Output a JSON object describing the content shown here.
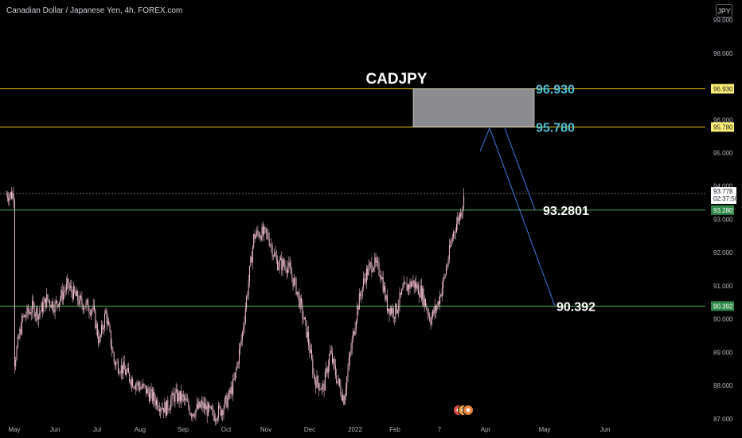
{
  "symbol_info": "Canadian Dollar / Japanese Yen, 4h, FOREX.com",
  "currency_button": "JPY",
  "colors": {
    "background": "#000000",
    "candle": "#f2bdd0",
    "resistance_line": "#f0c419",
    "support_line": "#4caf50",
    "zone_fill": "#8c8c90",
    "projection_arrow": "#3d6fd6",
    "level_text_cyan": "#4fc3d9",
    "last_price_badge": "#ffffff",
    "yellow_badge": "#fff176",
    "green_badge": "#2e8b47"
  },
  "chart_data": {
    "type": "candlestick",
    "title": "CADJPY",
    "ylim": [
      86.95,
      99.6
    ],
    "y_ticks": [
      "99.000",
      "98.000",
      "97.000",
      "96.000",
      "95.000",
      "94.000",
      "93.000",
      "92.000",
      "91.000",
      "90.000",
      "89.000",
      "88.000",
      "87.000"
    ],
    "y_tick_values": [
      99,
      98,
      97,
      96,
      95,
      94,
      93,
      92,
      91,
      90,
      89,
      88,
      87
    ],
    "x_ticks": [
      "May",
      "Jun",
      "Jul",
      "Aug",
      "Sep",
      "Oct",
      "Nov",
      "Dec",
      "2022",
      "Feb",
      "7",
      "Apr",
      "May",
      "Jun"
    ],
    "price_path": [
      [
        0,
        88.7
      ],
      [
        0.2,
        90.0
      ],
      [
        0.45,
        90.35
      ],
      [
        0.6,
        90.15
      ],
      [
        0.8,
        90.6
      ],
      [
        1.0,
        90.4
      ],
      [
        1.3,
        91.0
      ],
      [
        1.6,
        90.5
      ],
      [
        1.9,
        90.3
      ],
      [
        2.05,
        89.3
      ],
      [
        2.2,
        90.2
      ],
      [
        2.4,
        88.7
      ],
      [
        2.6,
        88.5
      ],
      [
        2.85,
        88.1
      ],
      [
        3.1,
        87.9
      ],
      [
        3.4,
        87.5
      ],
      [
        3.6,
        87.3
      ],
      [
        3.8,
        87.7
      ],
      [
        4.0,
        87.6
      ],
      [
        4.2,
        87.2
      ],
      [
        4.45,
        87.4
      ],
      [
        4.7,
        87.1
      ],
      [
        4.9,
        87.3
      ],
      [
        5.05,
        87.6
      ],
      [
        5.2,
        88.1
      ],
      [
        5.4,
        89.5
      ],
      [
        5.55,
        91.0
      ],
      [
        5.7,
        92.5
      ],
      [
        5.85,
        92.6
      ],
      [
        6.05,
        92.5
      ],
      [
        6.25,
        91.7
      ],
      [
        6.5,
        91.6
      ],
      [
        6.7,
        90.9
      ],
      [
        6.95,
        89.5
      ],
      [
        7.1,
        88.2
      ],
      [
        7.3,
        87.9
      ],
      [
        7.45,
        89.0
      ],
      [
        7.6,
        88.2
      ],
      [
        7.75,
        87.6
      ],
      [
        7.9,
        89.0
      ],
      [
        8.05,
        90.3
      ],
      [
        8.25,
        91.3
      ],
      [
        8.45,
        91.7
      ],
      [
        8.65,
        91.4
      ],
      [
        8.8,
        90.4
      ],
      [
        9.0,
        90.2
      ],
      [
        9.2,
        90.9
      ],
      [
        9.4,
        91.1
      ],
      [
        9.6,
        90.8
      ],
      [
        9.8,
        90.0
      ],
      [
        9.95,
        90.4
      ],
      [
        10.1,
        91.2
      ],
      [
        10.2,
        91.9
      ],
      [
        10.3,
        92.6
      ],
      [
        10.45,
        93.2
      ],
      [
        10.55,
        93.75
      ]
    ],
    "levels": [
      {
        "label": "96.930",
        "value": 96.93,
        "kind": "resistance"
      },
      {
        "label": "95.780",
        "value": 95.78,
        "kind": "resistance"
      },
      {
        "label": "93.2801",
        "value": 93.28,
        "kind": "support"
      },
      {
        "label": "90.392",
        "value": 90.392,
        "kind": "support"
      }
    ],
    "zone": {
      "from": 95.78,
      "to": 96.93
    },
    "projection": {
      "from": 95.7,
      "to": 90.392
    },
    "price_axis_badges": [
      {
        "label": "96.930",
        "value": 96.93,
        "style": "yellow"
      },
      {
        "label": "95.780",
        "value": 95.78,
        "style": "yellow"
      },
      {
        "label": "93.778",
        "sublabel": "02:37:50",
        "value": 93.778,
        "style": "last"
      },
      {
        "label": "93.280",
        "value": 93.28,
        "style": "green"
      },
      {
        "label": "90.392",
        "value": 90.392,
        "style": "green"
      }
    ],
    "last_price": 93.778
  }
}
